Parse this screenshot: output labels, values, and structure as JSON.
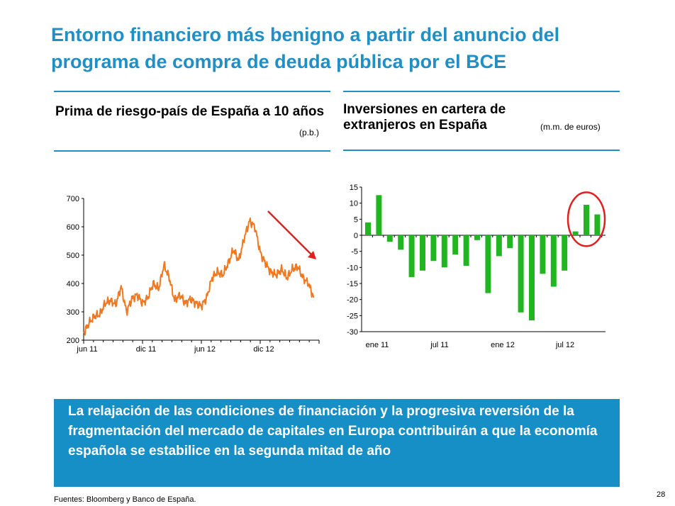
{
  "slide": {
    "title": "Entorno financiero más benigno a partir del anuncio del programa de compra de deuda pública por el BCE",
    "left_panel": {
      "title": "Prima de riesgo-país de España a 10 años",
      "unit": "(p.b.)"
    },
    "right_panel": {
      "title_line1": "Inversiones en cartera de",
      "title_line2": "extranjeros en España",
      "unit": "(m.m. de euros)"
    },
    "highlight_text": "La relajación de las condiciones de financiación y la progresiva reversión de la fragmentación del mercado de capitales en Europa contribuirán a que la economía española se estabilice en la segunda mitad de año",
    "source": "Fuentes: Bloomberg y Banco de España.",
    "page_number": "28",
    "colors": {
      "accent": "#1f8fc6",
      "line_series": "#f07820",
      "bars": "#22b522",
      "arrow": "#e02020",
      "circle": "#e02020",
      "box": "#168fc6"
    }
  },
  "chart_data": [
    {
      "type": "line",
      "x_tick_labels": [
        "jun 11",
        "dic 11",
        "jun 12",
        "dic 12"
      ],
      "ylim": [
        200,
        700
      ],
      "y_ticks": [
        200,
        300,
        400,
        500,
        600,
        700
      ],
      "xlim": [
        0,
        22
      ],
      "series": [
        {
          "x": [
            0,
            0.5,
            1,
            1.5,
            2,
            2.5,
            3,
            3.5,
            4,
            4.5,
            5,
            5.5,
            6,
            6.5,
            7,
            7.5,
            8,
            8.5,
            9,
            9.5,
            10,
            10.5,
            11,
            11.5,
            12,
            12.5,
            13,
            13.5,
            14,
            14.5,
            15,
            15.5,
            16,
            16.5,
            17,
            17.5,
            18,
            18.5,
            19,
            19.5,
            20,
            20.5,
            21,
            21.5
          ],
          "values": [
            225,
            260,
            285,
            290,
            330,
            340,
            325,
            390,
            300,
            345,
            360,
            330,
            350,
            400,
            380,
            465,
            420,
            340,
            360,
            330,
            345,
            330,
            320,
            350,
            420,
            440,
            430,
            470,
            520,
            480,
            560,
            620,
            600,
            510,
            470,
            440,
            430,
            450,
            420,
            450,
            460,
            420,
            400,
            350
          ]
        }
      ]
    },
    {
      "type": "bar",
      "x_tick_labels": [
        "ene 11",
        "jul 11",
        "ene 12",
        "jul 12"
      ],
      "ylim": [
        -30,
        15
      ],
      "y_ticks": [
        15,
        10,
        5,
        0,
        -5,
        -10,
        -15,
        -20,
        -25,
        -30
      ],
      "series": [
        {
          "values": [
            4,
            12.5,
            -2,
            -4.5,
            -13,
            -11,
            -8,
            -10,
            -6,
            -9.5,
            -1.5,
            -18,
            -6.5,
            -4,
            -24,
            -26.5,
            -12,
            -16,
            -11,
            1.2,
            9.5,
            6.5
          ]
        }
      ]
    }
  ]
}
